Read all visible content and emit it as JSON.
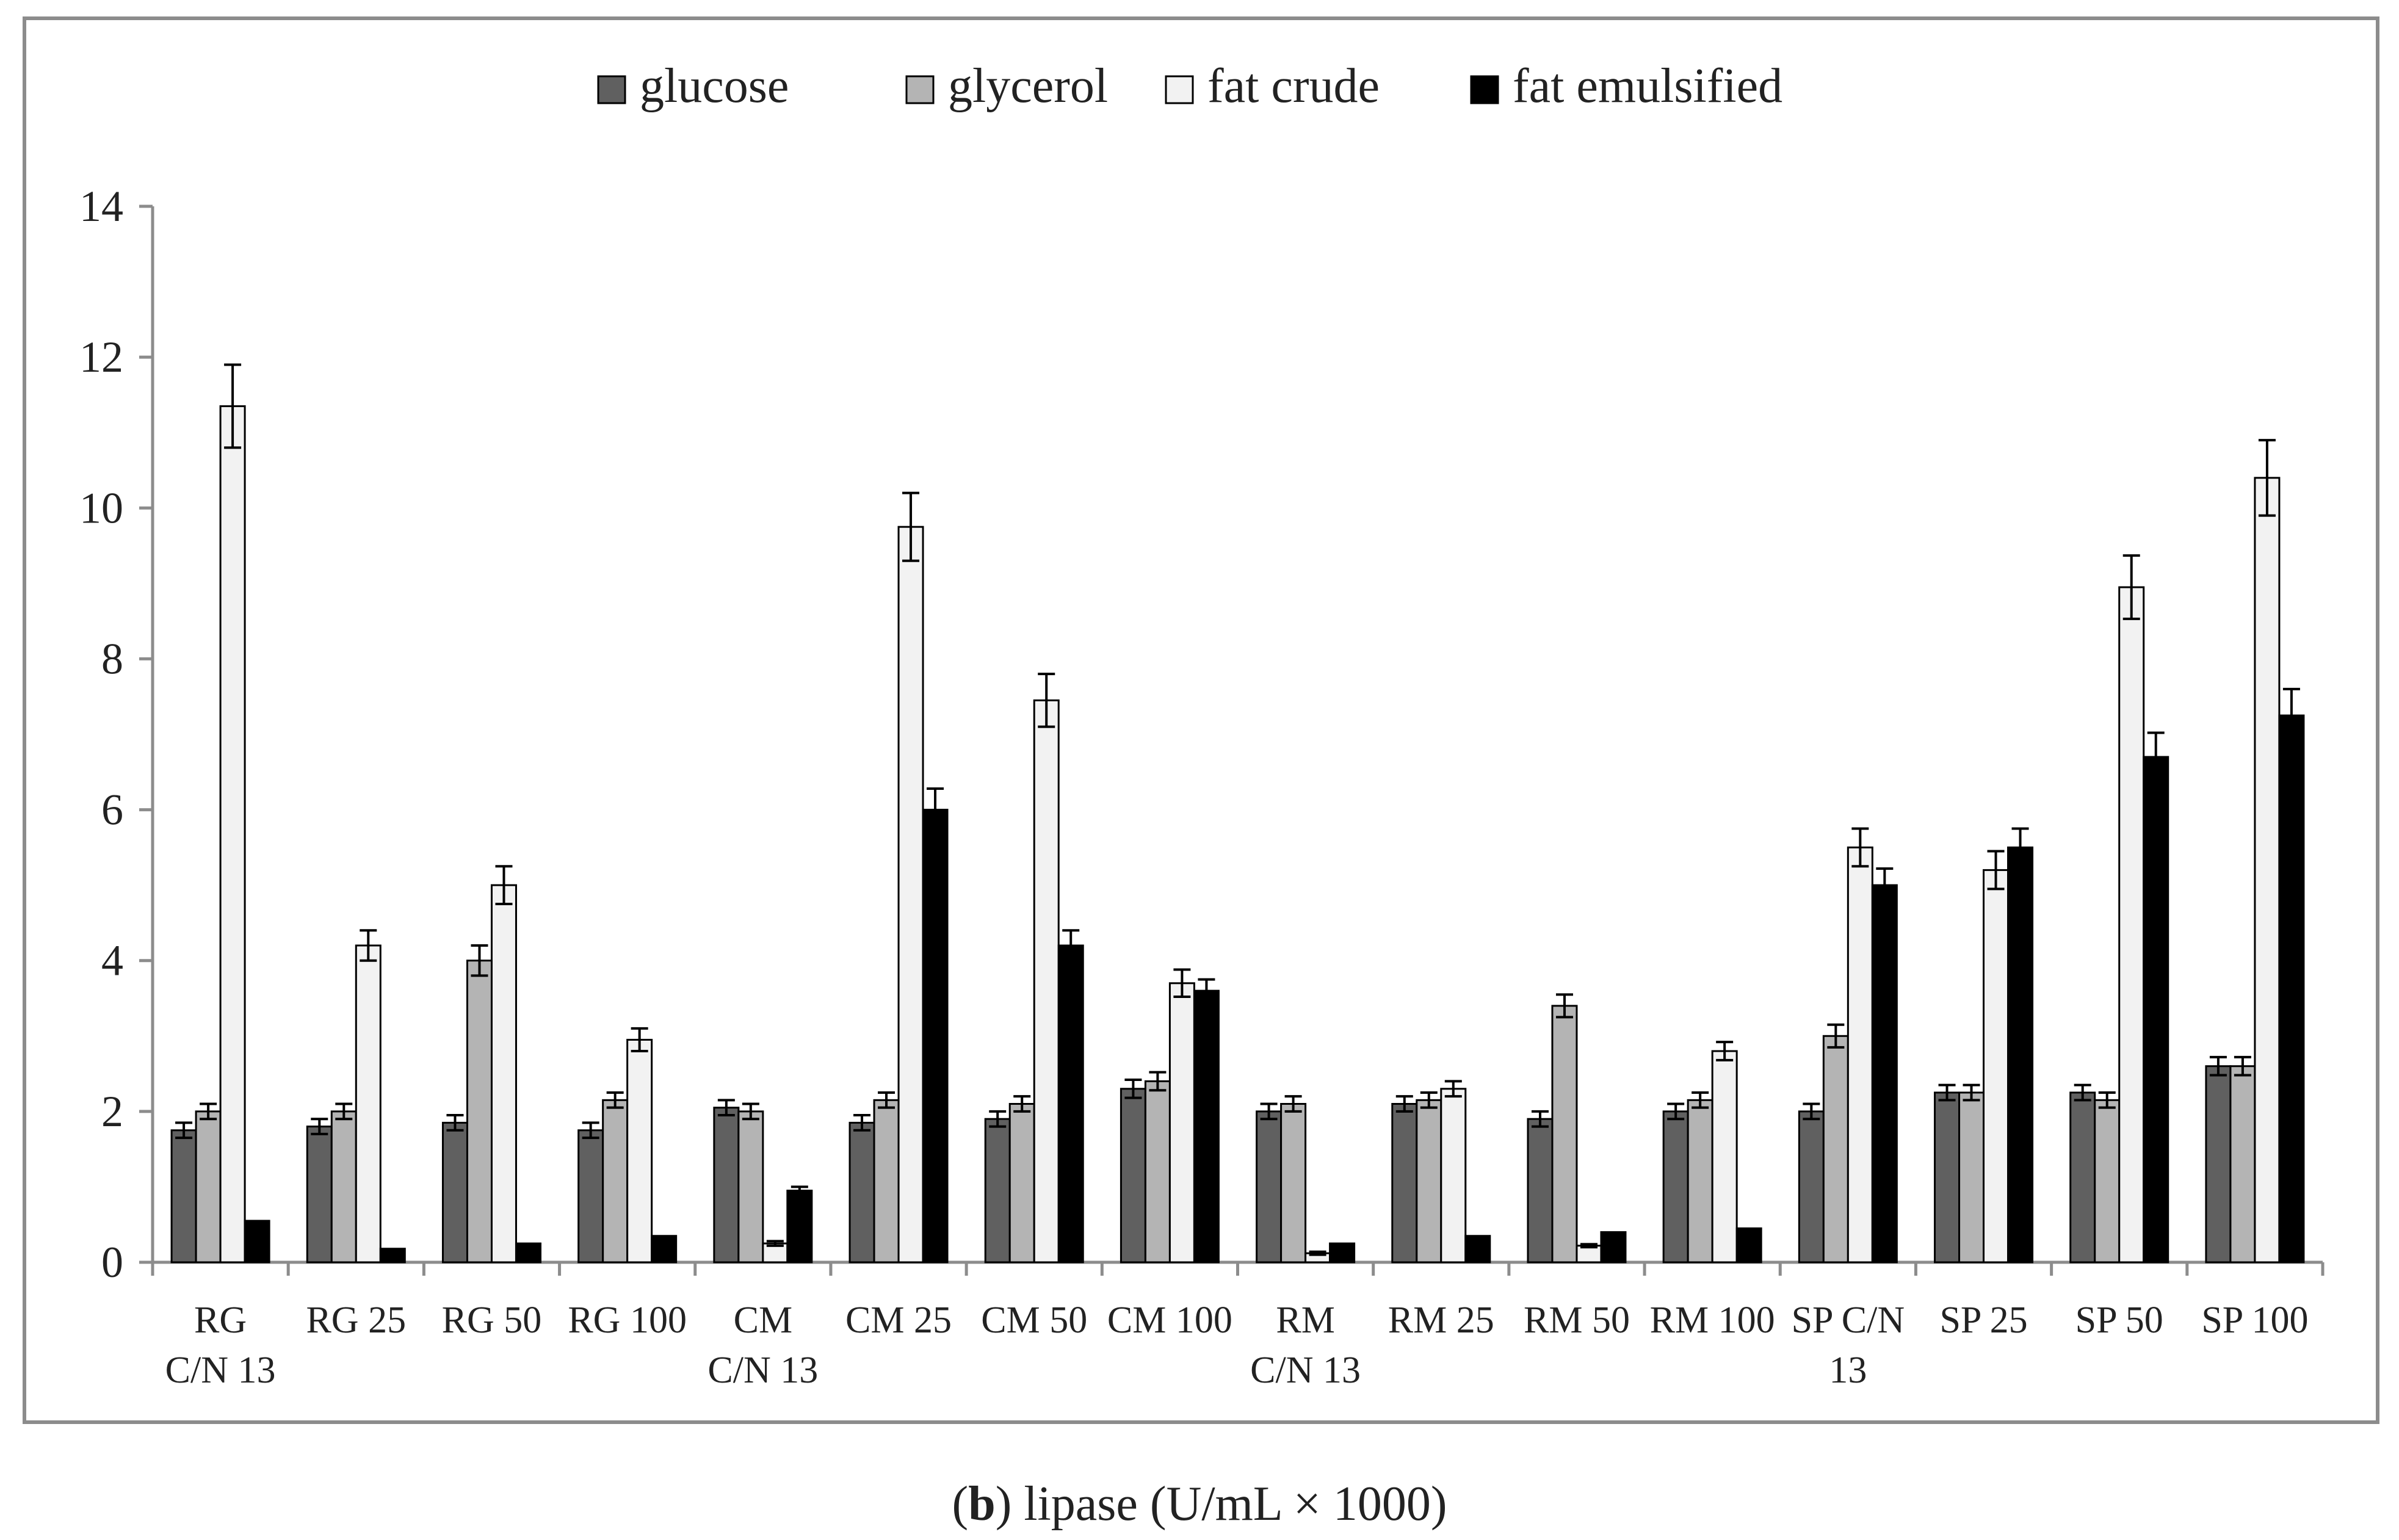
{
  "chart_data": {
    "type": "bar",
    "caption_prefix": "(",
    "caption_bold": "b",
    "caption_rest": ") lipase (U/mL × 1000)",
    "ylim": [
      0,
      14
    ],
    "yticks": [
      "0",
      "2",
      "4",
      "6",
      "8",
      "10",
      "12",
      "14"
    ],
    "categories": [
      [
        "RG",
        "C/N 13"
      ],
      [
        "RG 25"
      ],
      [
        "RG 50"
      ],
      [
        "RG 100"
      ],
      [
        "CM",
        "C/N 13"
      ],
      [
        "CM 25"
      ],
      [
        "CM 50"
      ],
      [
        "CM 100"
      ],
      [
        "RM",
        "C/N 13"
      ],
      [
        "RM 25"
      ],
      [
        "RM 50"
      ],
      [
        "RM 100"
      ],
      [
        "SP C/N",
        "13"
      ],
      [
        "SP 25"
      ],
      [
        "SP 50"
      ],
      [
        "SP 100"
      ]
    ],
    "series": [
      {
        "name": "glucose",
        "color": "#606060",
        "values": [
          1.75,
          1.8,
          1.85,
          1.75,
          2.05,
          1.85,
          1.9,
          2.3,
          2.0,
          2.1,
          1.9,
          2.0,
          2.0,
          2.25,
          2.25,
          2.6
        ],
        "errors": [
          0.1,
          0.1,
          0.1,
          0.1,
          0.1,
          0.1,
          0.1,
          0.12,
          0.1,
          0.1,
          0.1,
          0.1,
          0.1,
          0.1,
          0.1,
          0.12
        ]
      },
      {
        "name": "glycerol",
        "color": "#b4b4b4",
        "values": [
          2.0,
          2.0,
          4.0,
          2.15,
          2.0,
          2.15,
          2.1,
          2.4,
          2.1,
          2.15,
          3.4,
          2.15,
          3.0,
          2.25,
          2.15,
          2.6
        ],
        "errors": [
          0.1,
          0.1,
          0.2,
          0.1,
          0.1,
          0.1,
          0.1,
          0.12,
          0.1,
          0.1,
          0.15,
          0.1,
          0.15,
          0.1,
          0.1,
          0.12
        ]
      },
      {
        "name": "fat crude",
        "color": "#f2f2f2",
        "values": [
          11.35,
          4.2,
          5.0,
          2.95,
          0.25,
          9.75,
          7.45,
          3.7,
          0.12,
          2.3,
          0.22,
          2.8,
          5.5,
          5.2,
          8.95,
          10.4
        ],
        "errors": [
          0.55,
          0.2,
          0.25,
          0.15,
          0.03,
          0.45,
          0.35,
          0.18,
          0.02,
          0.1,
          0.02,
          0.12,
          0.25,
          0.25,
          0.42,
          0.5
        ]
      },
      {
        "name": "fat emulsified",
        "color": "#000000",
        "values": [
          0.55,
          0.18,
          0.25,
          0.35,
          0.95,
          6.0,
          4.2,
          3.6,
          0.25,
          0.35,
          0.4,
          0.45,
          5.0,
          5.5,
          6.7,
          7.25
        ],
        "errors": [
          0.0,
          0.0,
          0.0,
          0.0,
          0.05,
          0.28,
          0.2,
          0.15,
          0.0,
          0.0,
          0.0,
          0.0,
          0.22,
          0.25,
          0.32,
          0.35
        ]
      }
    ]
  }
}
